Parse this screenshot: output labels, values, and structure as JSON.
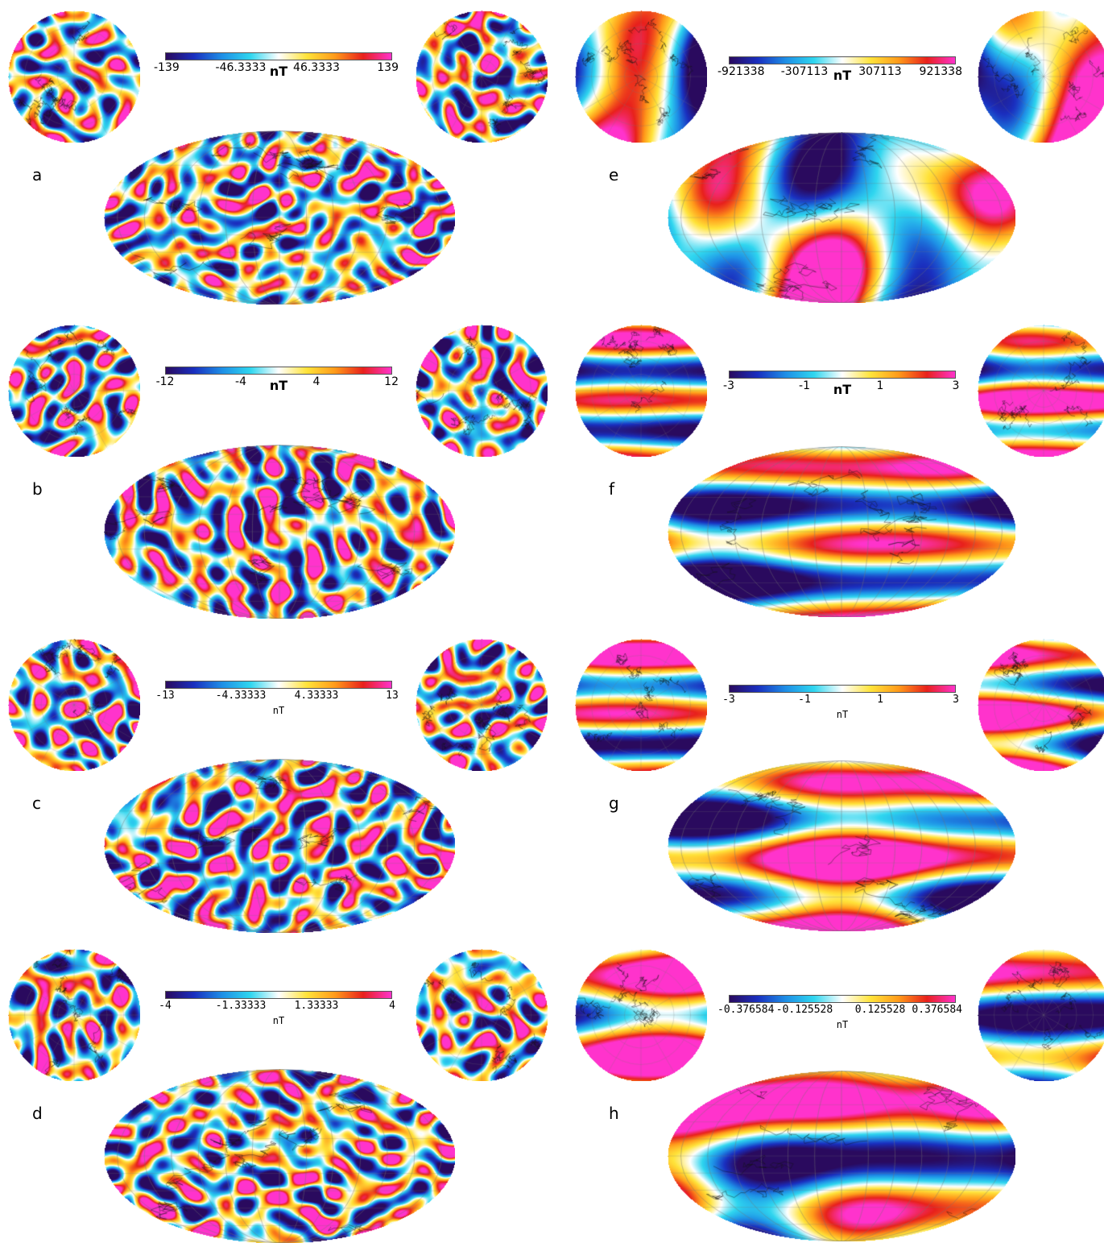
{
  "panels": [
    {
      "id": "a",
      "label": "a",
      "unit": "nT",
      "ticks": [
        "-139",
        "-46.3333",
        "46.3333",
        "139"
      ],
      "font": "sans",
      "seed": 11,
      "freq": "fine",
      "mode": "noise"
    },
    {
      "id": "b",
      "label": "b",
      "unit": "nT",
      "ticks": [
        "-12",
        "-4",
        "4",
        "12"
      ],
      "font": "sans",
      "seed": 23,
      "freq": "fine",
      "mode": "noise"
    },
    {
      "id": "c",
      "label": "c",
      "unit": "nT",
      "ticks": [
        "-13",
        "-4.33333",
        "4.33333",
        "13"
      ],
      "font": "mono",
      "seed": 37,
      "freq": "fine",
      "mode": "noise"
    },
    {
      "id": "d",
      "label": "d",
      "unit": "nT",
      "ticks": [
        "-4",
        "-1.33333",
        "1.33333",
        "4"
      ],
      "font": "mono",
      "seed": 51,
      "freq": "fine",
      "mode": "noise"
    },
    {
      "id": "e",
      "label": "e",
      "unit": "nT",
      "ticks": [
        "-921338",
        "-307113",
        "307113",
        "921338"
      ],
      "font": "sans",
      "seed": 67,
      "freq": "coarse",
      "mode": "blob"
    },
    {
      "id": "f",
      "label": "f",
      "unit": "nT",
      "ticks": [
        "-3",
        "-1",
        "1",
        "3"
      ],
      "font": "sans",
      "seed": 79,
      "freq": "bands",
      "mode": "bands"
    },
    {
      "id": "g",
      "label": "g",
      "unit": "nT",
      "ticks": [
        "-3",
        "-1",
        "1",
        "3"
      ],
      "font": "mono",
      "seed": 83,
      "freq": "bands",
      "mode": "bands"
    },
    {
      "id": "h",
      "label": "h",
      "unit": "nT",
      "ticks": [
        "-0.376584",
        "-0.125528",
        "0.125528",
        "0.376584"
      ],
      "font": "mono",
      "seed": 97,
      "freq": "coarse",
      "mode": "bands2"
    }
  ],
  "colormap": [
    "#2a0a5e",
    "#1a2fbf",
    "#1e8fe6",
    "#2fd6ef",
    "#ffffff",
    "#ffe33a",
    "#ff9a1a",
    "#e8211c",
    "#ff33cc"
  ]
}
